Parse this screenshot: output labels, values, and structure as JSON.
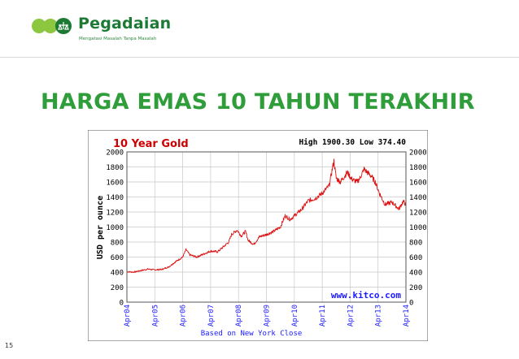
{
  "brand": {
    "name": "Pegadaian",
    "tagline": "Mengatasi Masalah Tanpa Masalah",
    "colors": {
      "primary": "#1d7a35",
      "accent": "#8dc63f",
      "title": "#2e9d3a"
    }
  },
  "slide": {
    "title": "HARGA EMAS 10 TAHUN TERAKHIR",
    "page_number": "15"
  },
  "chart_data": {
    "type": "line",
    "title": "10 Year Gold",
    "stats": "High 1900.30 Low 374.40",
    "ylabel": "USD per ounce",
    "xlabel": "Based on New York Close",
    "watermark": "www.kitco.com",
    "ylim": [
      0,
      2000
    ],
    "yticks": [
      0,
      200,
      400,
      600,
      800,
      1000,
      1200,
      1400,
      1600,
      1800,
      2000
    ],
    "ytick_labels": [
      "0",
      "200",
      "400",
      "600",
      "800",
      "1000",
      "1200",
      "1400",
      "1600",
      "1800",
      "2000"
    ],
    "xticks": [
      "Apr04",
      "Apr05",
      "Apr06",
      "Apr07",
      "Apr08",
      "Apr09",
      "Apr10",
      "Apr11",
      "Apr12",
      "Apr13",
      "Apr14"
    ],
    "grid": true,
    "line_color": "#dd1111",
    "series": [
      {
        "x": [
          2004.25,
          2004.5,
          2004.75,
          2005.0,
          2005.25,
          2005.5,
          2005.75,
          2006.0,
          2006.25,
          2006.37,
          2006.5,
          2006.75,
          2007.0,
          2007.25,
          2007.5,
          2007.75,
          2007.9,
          2008.0,
          2008.2,
          2008.35,
          2008.5,
          2008.6,
          2008.8,
          2009.0,
          2009.25,
          2009.5,
          2009.75,
          2009.92,
          2010.1,
          2010.25,
          2010.5,
          2010.75,
          2011.0,
          2011.25,
          2011.5,
          2011.6,
          2011.67,
          2011.75,
          2011.9,
          2012.0,
          2012.15,
          2012.3,
          2012.5,
          2012.6,
          2012.75,
          2013.0,
          2013.15,
          2013.3,
          2013.5,
          2013.75,
          2014.0,
          2014.15,
          2014.25
        ],
        "y": [
          405,
          400,
          420,
          440,
          430,
          435,
          470,
          540,
          600,
          700,
          630,
          600,
          640,
          680,
          670,
          750,
          800,
          900,
          960,
          880,
          940,
          820,
          770,
          870,
          900,
          940,
          1000,
          1150,
          1100,
          1150,
          1230,
          1350,
          1380,
          1450,
          1550,
          1750,
          1880,
          1650,
          1600,
          1650,
          1730,
          1640,
          1600,
          1650,
          1770,
          1680,
          1600,
          1450,
          1300,
          1330,
          1240,
          1340,
          1300
        ]
      }
    ]
  }
}
